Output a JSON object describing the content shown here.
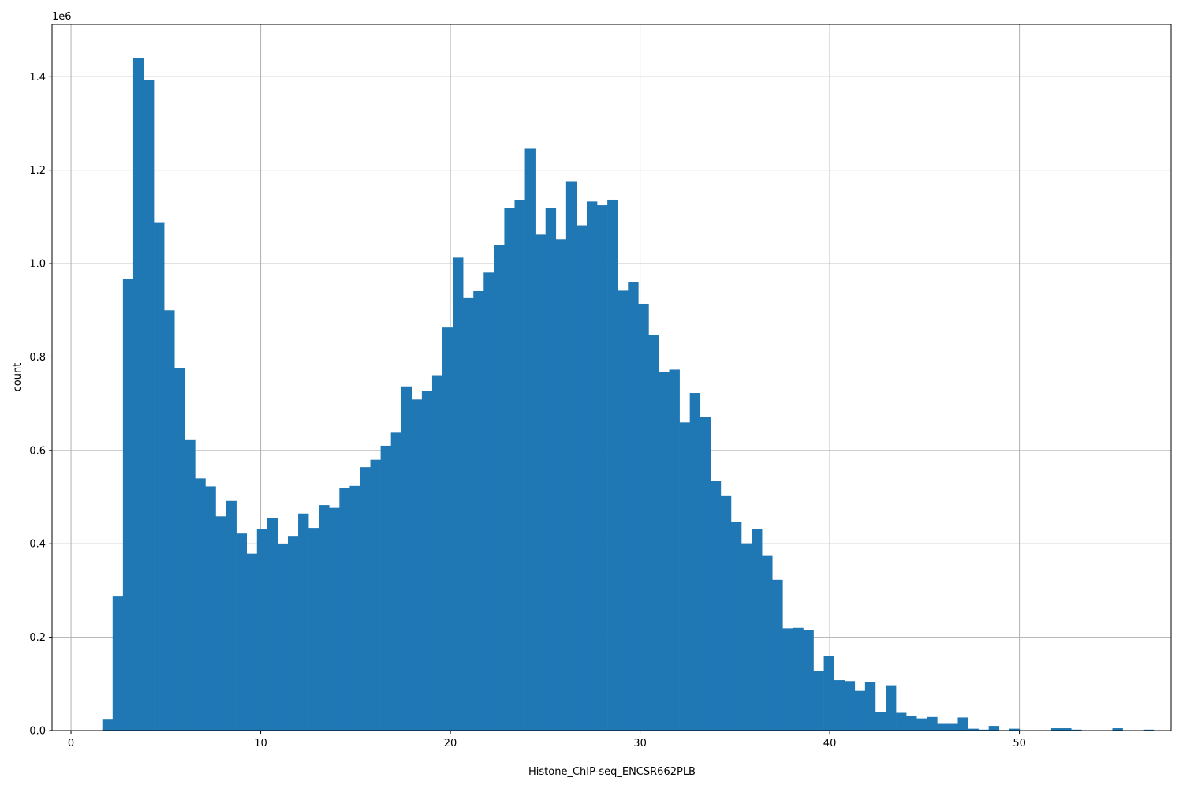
{
  "chart_data": {
    "type": "bar",
    "subtype": "histogram",
    "title": "",
    "xlabel": "Histone_ChIP-seq_ENCSR662PLB",
    "ylabel": "count",
    "y_offset_label": "1e6",
    "xlim": [
      -1.0,
      58.0
    ],
    "ylim": [
      0,
      1.512
    ],
    "x_ticks": [
      0,
      10,
      20,
      30,
      40,
      50
    ],
    "x_tick_labels": [
      "0",
      "10",
      "20",
      "30",
      "40",
      "50"
    ],
    "y_ticks": [
      0.0,
      0.2,
      0.4,
      0.6,
      0.8,
      1.0,
      1.2,
      1.4
    ],
    "y_tick_labels": [
      "0.0",
      "0.2",
      "0.4",
      "0.6",
      "0.8",
      "1.0",
      "1.2",
      "1.4"
    ],
    "grid": true,
    "color": "#1f77b4",
    "bin_start": 1.65,
    "bin_width": 0.5434,
    "values": [
      0.025,
      0.287,
      0.968,
      1.44,
      1.393,
      1.087,
      0.9,
      0.777,
      0.622,
      0.54,
      0.523,
      0.459,
      0.492,
      0.422,
      0.379,
      0.432,
      0.456,
      0.4,
      0.417,
      0.465,
      0.434,
      0.483,
      0.477,
      0.52,
      0.524,
      0.564,
      0.58,
      0.61,
      0.638,
      0.737,
      0.709,
      0.727,
      0.761,
      0.863,
      1.013,
      0.926,
      0.941,
      0.981,
      1.04,
      1.12,
      1.136,
      1.246,
      1.062,
      1.12,
      1.052,
      1.175,
      1.082,
      1.133,
      1.125,
      1.137,
      0.942,
      0.96,
      0.914,
      0.848,
      0.768,
      0.773,
      0.66,
      0.723,
      0.671,
      0.534,
      0.502,
      0.447,
      0.401,
      0.431,
      0.374,
      0.323,
      0.219,
      0.22,
      0.215,
      0.127,
      0.16,
      0.108,
      0.106,
      0.085,
      0.104,
      0.04,
      0.097,
      0.038,
      0.032,
      0.026,
      0.029,
      0.016,
      0.016,
      0.028,
      0.004,
      0.002,
      0.01,
      0.001,
      0.004,
      0.0,
      0.0,
      0.0,
      0.005,
      0.005,
      0.002,
      0.0,
      0.0,
      0.0,
      0.005,
      0.0,
      0.0,
      0.002
    ]
  }
}
